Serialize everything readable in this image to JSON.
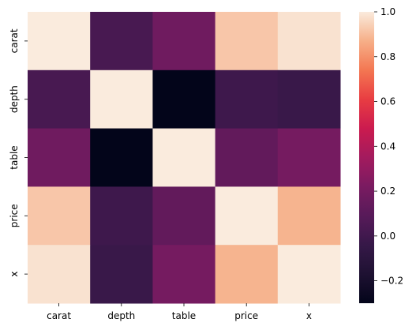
{
  "chart_data": {
    "type": "heatmap",
    "x_categories": [
      "carat",
      "depth",
      "table",
      "price",
      "x"
    ],
    "y_categories": [
      "carat",
      "depth",
      "table",
      "price",
      "x"
    ],
    "values": [
      [
        1.0,
        0.03,
        0.18,
        0.92,
        0.98
      ],
      [
        0.03,
        1.0,
        -0.3,
        -0.01,
        -0.03
      ],
      [
        0.18,
        -0.3,
        1.0,
        0.13,
        0.2
      ],
      [
        0.92,
        -0.01,
        0.13,
        1.0,
        0.88
      ],
      [
        0.98,
        -0.03,
        0.2,
        0.88,
        1.0
      ]
    ],
    "colorbar": {
      "vmin": -0.3,
      "vmax": 1.0,
      "ticks": [
        -0.2,
        0.0,
        0.2,
        0.4,
        0.6,
        0.8,
        1.0
      ],
      "tick_labels": [
        "−0.2",
        "0.0",
        "0.2",
        "0.4",
        "0.6",
        "0.8",
        "1.0"
      ]
    },
    "colormap": "rocket",
    "grid": false
  }
}
